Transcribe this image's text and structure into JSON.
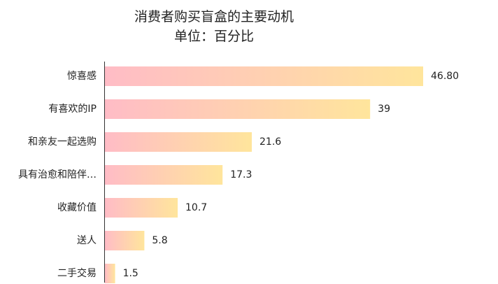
{
  "chart_data": {
    "type": "bar",
    "orientation": "horizontal",
    "title": "消费者购买盲盒的主要动机",
    "subtitle": "单位：百分比",
    "categories": [
      "惊喜感",
      "有喜欢的IP",
      "和亲友一起选购",
      "具有治愈和陪伴…",
      "收藏价值",
      "送人",
      "二手交易"
    ],
    "values": [
      46.8,
      39,
      21.6,
      17.3,
      10.7,
      5.8,
      1.5
    ],
    "value_labels": [
      "46.80",
      "39",
      "21.6",
      "17.3",
      "10.7",
      "5.8",
      "1.5"
    ],
    "xlim": [
      0,
      46.8
    ],
    "grid": false,
    "legend": "none",
    "colors": {
      "bar_start": "#ffbcc6",
      "bar_end": "#ffe59c",
      "axis": "#333333"
    }
  }
}
